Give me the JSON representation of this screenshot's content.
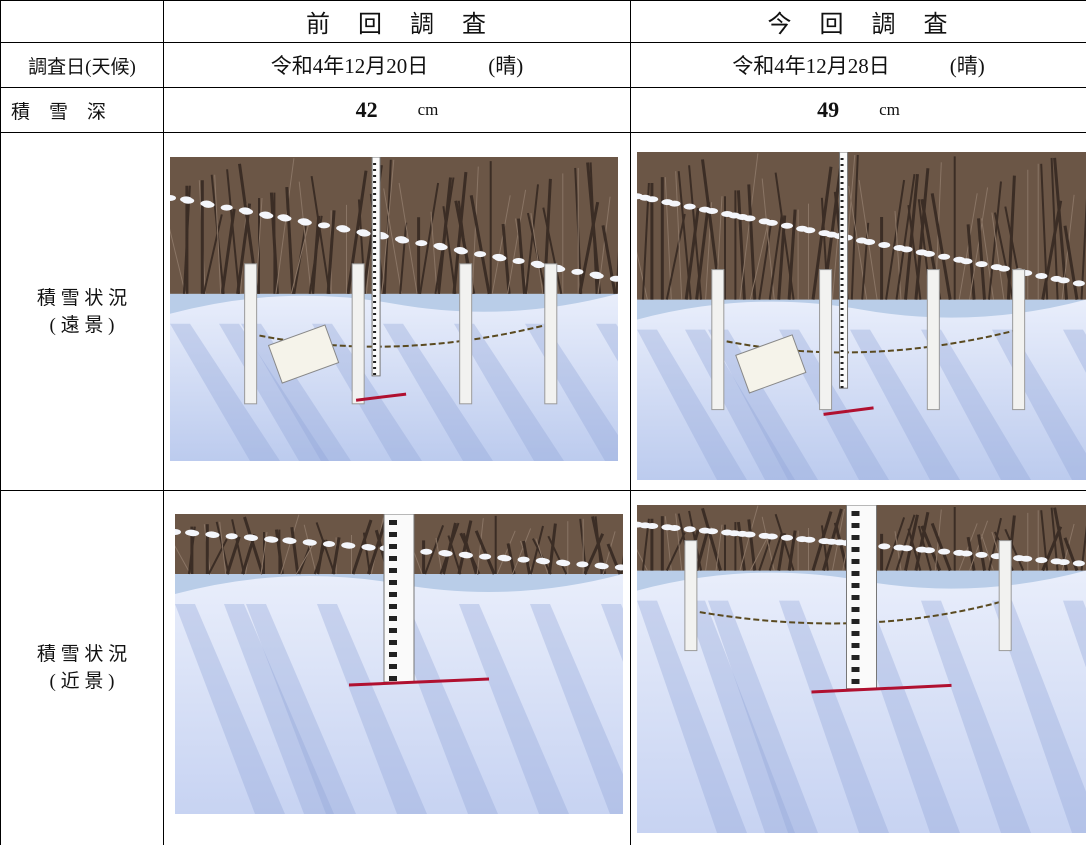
{
  "header": {
    "previous": "前　回　調　査",
    "current": "今　回　調　査"
  },
  "rows": {
    "date": {
      "label": "調査日(天候)",
      "previous": {
        "date": "令和4年12月20日",
        "weather": "(晴)"
      },
      "current": {
        "date": "令和4年12月28日",
        "weather": "(晴)"
      }
    },
    "depth": {
      "label": "積　雪　深",
      "previous": 42,
      "current": 49,
      "unit": "cm"
    },
    "far": {
      "label": [
        "積 雪 状 況",
        "( 遠 景 )"
      ]
    },
    "near": {
      "label": [
        "積 雪 状 況",
        "( 近 景 )"
      ]
    }
  }
}
